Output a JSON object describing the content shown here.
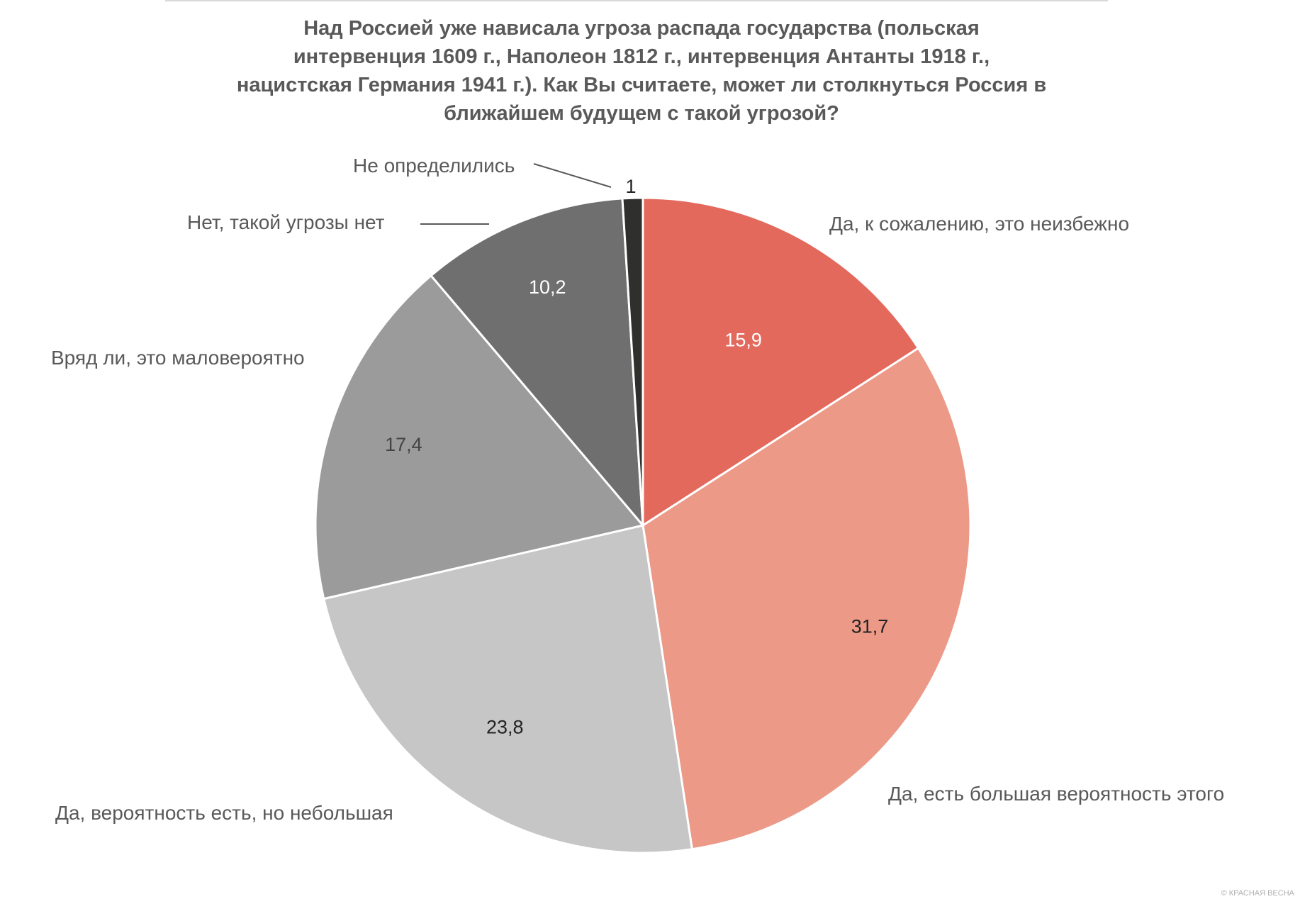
{
  "chart_data": {
    "type": "pie",
    "title_lines": [
      "Над Россией уже нависала угроза распада государства (польская",
      "интервенция 1609 г., Наполеон 1812 г., интервенция Антанты 1918 г.,",
      "нацистская Германия 1941 г.). Как Вы считаете, может ли столкнуться Россия в",
      "ближайшем будущем с такой угрозой?"
    ],
    "slices": [
      {
        "label": "Да, к сожалению, это неизбежно",
        "value": 15.9,
        "value_label": "15,9",
        "color": "#e3695c"
      },
      {
        "label": "Да, есть большая вероятность этого",
        "value": 31.7,
        "value_label": "31,7",
        "color": "#ec9988"
      },
      {
        "label": "Да, вероятность есть, но небольшая",
        "value": 23.8,
        "value_label": "23,8",
        "color": "#c5c6c5"
      },
      {
        "label": "Вряд ли, это маловероятно",
        "value": 17.4,
        "value_label": "17,4",
        "color": "#9b9b9b"
      },
      {
        "label": "Нет, такой угрозы нет",
        "value": 10.2,
        "value_label": "10,2",
        "color": "#6f6f6f"
      },
      {
        "label": "Не определились",
        "value": 1,
        "value_label": "1",
        "color": "#2f302e"
      }
    ],
    "value_label_colors": [
      "#ffffff",
      "#222222",
      "#222222",
      "#444444",
      "#ffffff",
      "#222222"
    ],
    "start_angle": "12 o'clock",
    "direction": "clockwise"
  },
  "watermark": "© КРАСНАЯ ВЕСНА"
}
